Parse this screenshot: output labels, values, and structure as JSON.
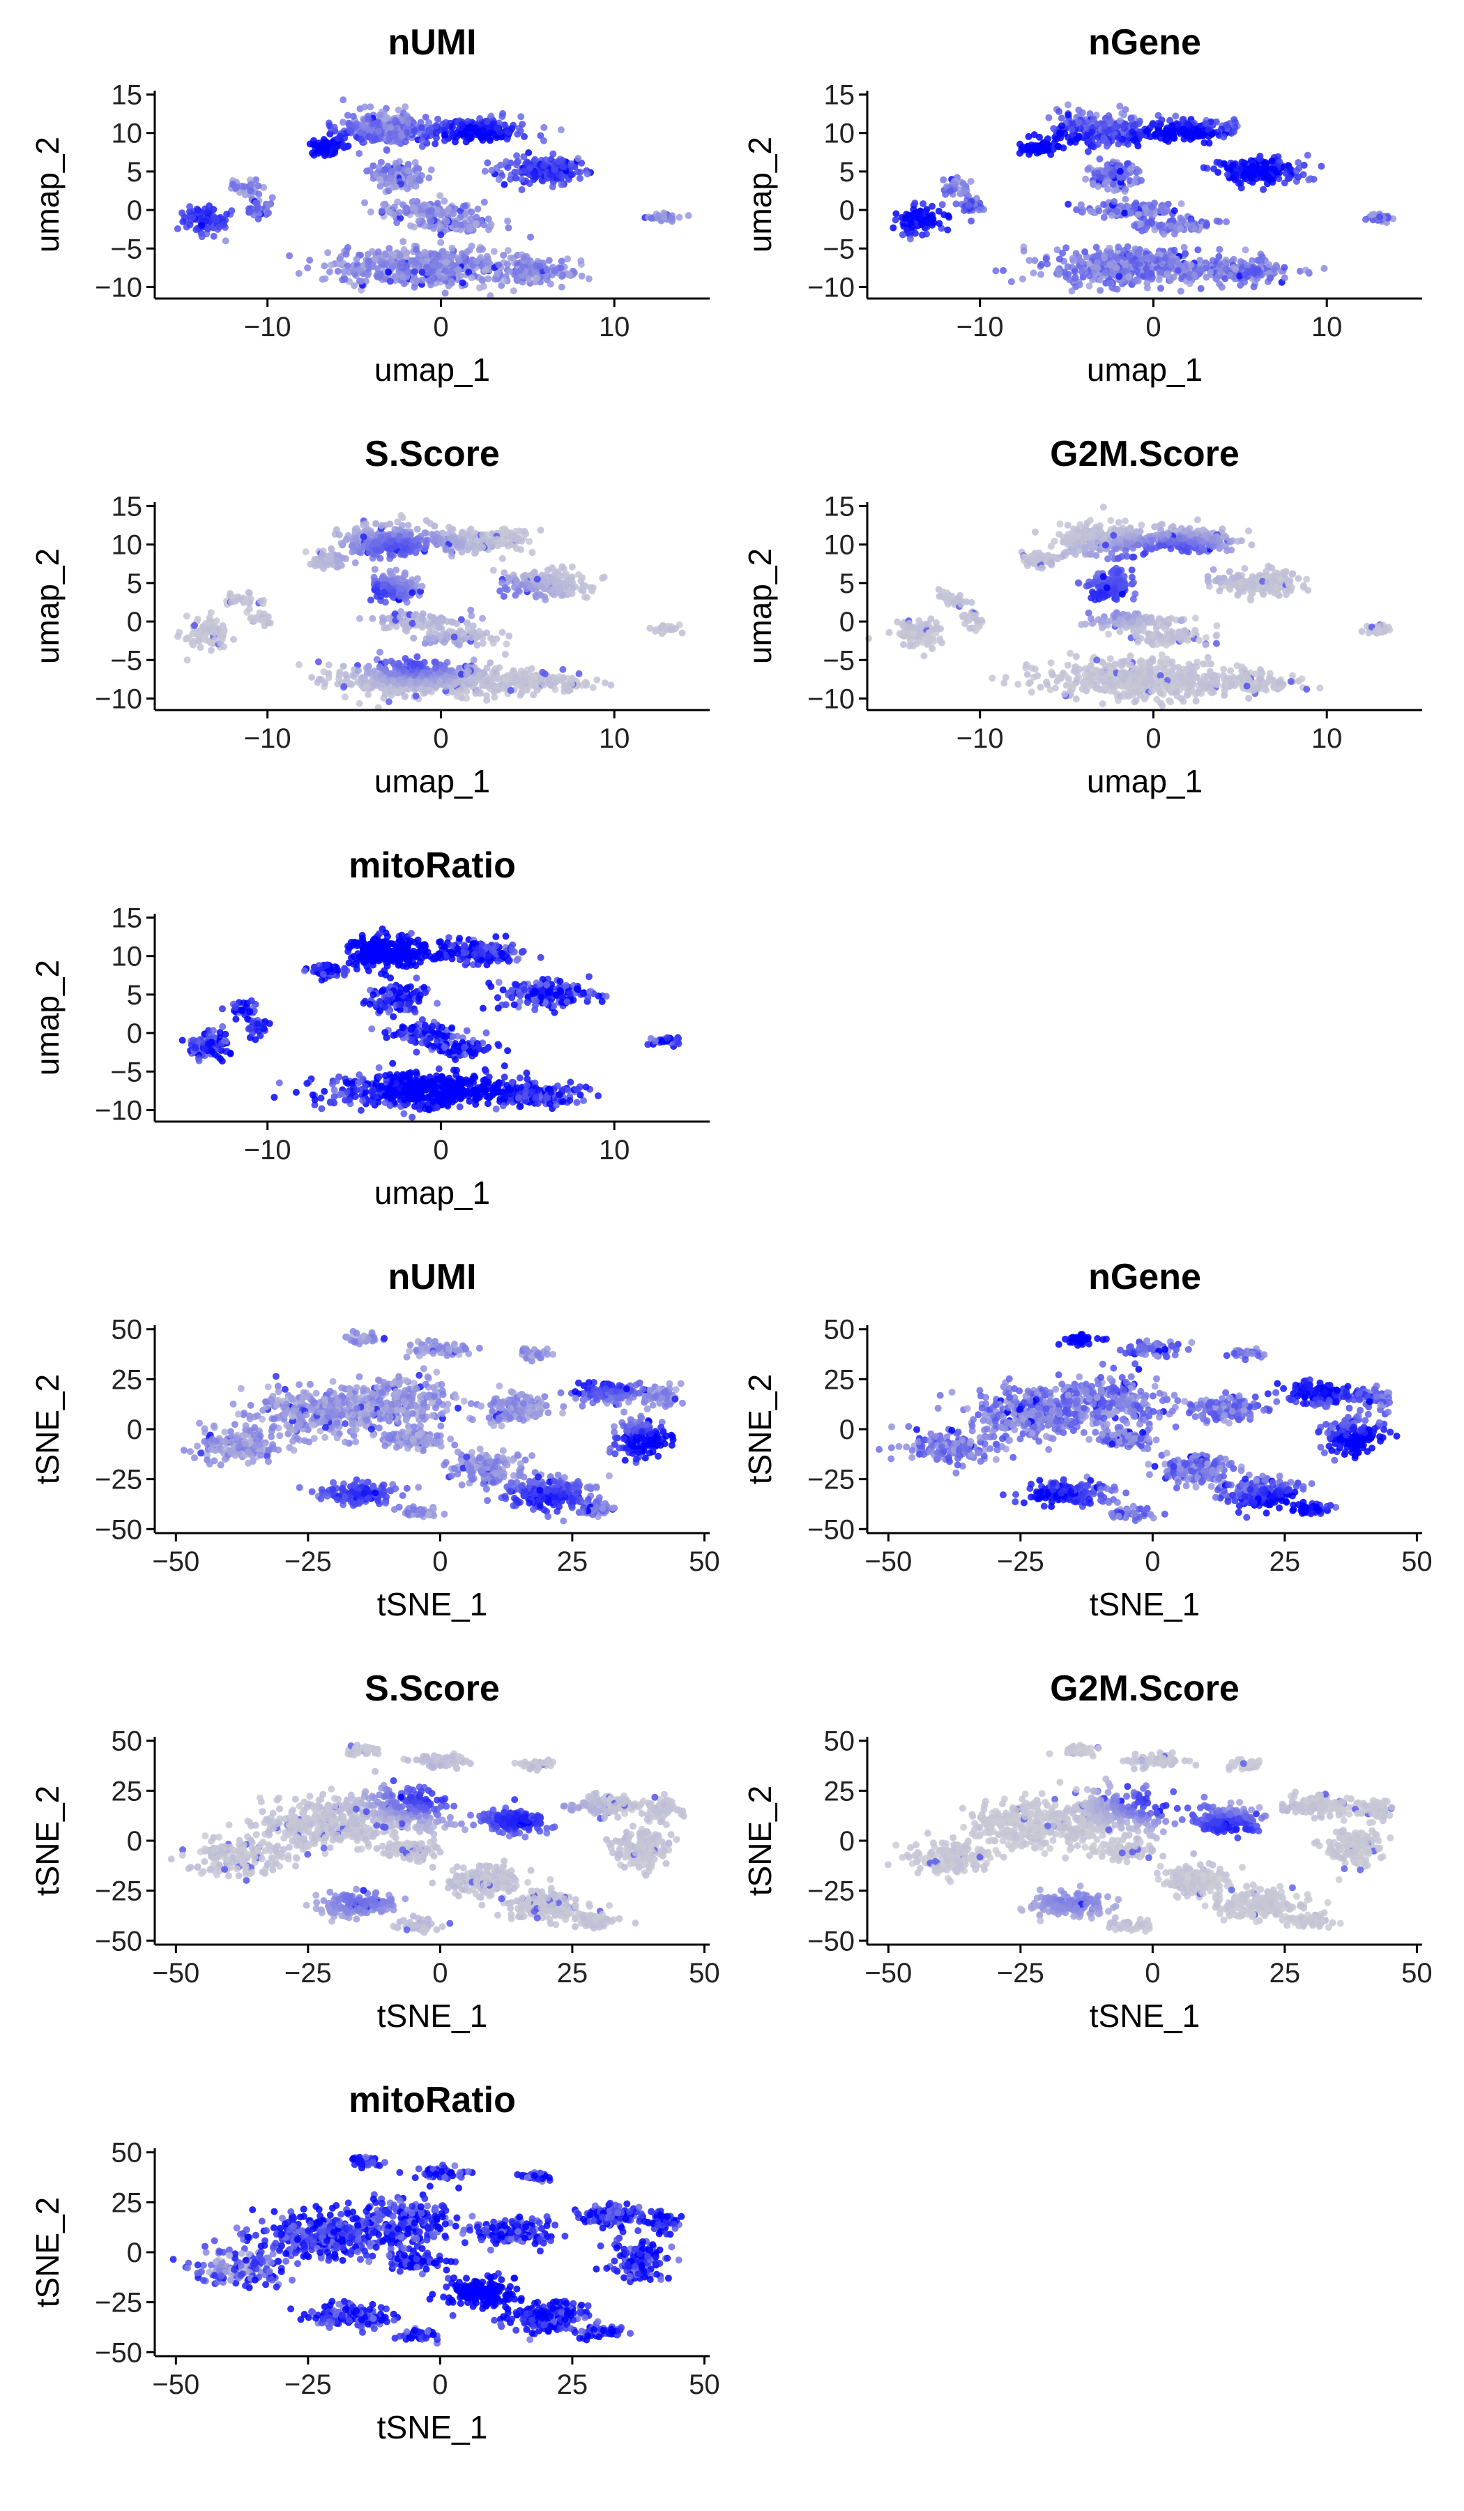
{
  "chart_data": [
    {
      "type": "scatter",
      "embedding": "umap",
      "title": "nUMI",
      "xlabel": "umap_1",
      "ylabel": "umap_2",
      "xlim": [
        -16.5,
        15.5
      ],
      "ylim": [
        -11.5,
        15.5
      ],
      "xticks": [
        -10,
        0,
        10
      ],
      "yticks": [
        -10,
        -5,
        0,
        5,
        10,
        15
      ],
      "color_low": "#d3d3d3",
      "color_high": "#0000ff",
      "intensity": 0.35,
      "hot": [
        [
          -7.5,
          8.5,
          0.9
        ],
        [
          2.0,
          9.5,
          0.85
        ],
        [
          -13.5,
          -1.0,
          0.5
        ],
        [
          6.0,
          5.0,
          0.5
        ]
      ]
    },
    {
      "type": "scatter",
      "embedding": "umap",
      "title": "nGene",
      "xlabel": "umap_1",
      "ylabel": "umap_2",
      "xlim": [
        -16.5,
        15.5
      ],
      "ylim": [
        -11.5,
        15.5
      ],
      "xticks": [
        -10,
        0,
        10
      ],
      "yticks": [
        -10,
        -5,
        0,
        5,
        10,
        15
      ],
      "color_low": "#d3d3d3",
      "color_high": "#0000ff",
      "intensity": 0.45,
      "hot": [
        [
          -6.5,
          8.5,
          0.95
        ],
        [
          1.5,
          9.0,
          0.95
        ],
        [
          -13.5,
          -1.0,
          0.7
        ],
        [
          6.0,
          5.0,
          0.65
        ]
      ]
    },
    {
      "type": "scatter",
      "embedding": "umap",
      "title": "S.Score",
      "xlabel": "umap_1",
      "ylabel": "umap_2",
      "xlim": [
        -16.5,
        15.5
      ],
      "ylim": [
        -11.5,
        15.5
      ],
      "xticks": [
        -10,
        0,
        10
      ],
      "yticks": [
        -10,
        -5,
        0,
        5,
        10,
        15
      ],
      "color_low": "#d3d3d3",
      "color_high": "#0000ff",
      "intensity": 0.08,
      "hot": [
        [
          -4.5,
          3.5,
          0.75
        ],
        [
          -2.5,
          9.5,
          0.55
        ],
        [
          -1.5,
          -5.0,
          0.6
        ],
        [
          3.0,
          3.0,
          0.5
        ]
      ]
    },
    {
      "type": "scatter",
      "embedding": "umap",
      "title": "G2M.Score",
      "xlabel": "umap_1",
      "ylabel": "umap_2",
      "xlim": [
        -16.5,
        15.5
      ],
      "ylim": [
        -11.5,
        15.5
      ],
      "xticks": [
        -10,
        0,
        10
      ],
      "yticks": [
        -10,
        -5,
        0,
        5,
        10,
        15
      ],
      "color_low": "#d3d3d3",
      "color_high": "#0000ff",
      "intensity": 0.08,
      "hot": [
        [
          -3.5,
          3.0,
          0.75
        ],
        [
          -1.0,
          7.0,
          0.55
        ],
        [
          1.5,
          9.0,
          0.5
        ]
      ]
    },
    {
      "type": "scatter",
      "embedding": "umap",
      "title": "mitoRatio",
      "xlabel": "umap_1",
      "ylabel": "umap_2",
      "xlim": [
        -16.5,
        15.5
      ],
      "ylim": [
        -11.5,
        15.5
      ],
      "xticks": [
        -10,
        0,
        10
      ],
      "yticks": [
        -10,
        -5,
        0,
        5,
        10,
        15
      ],
      "color_low": "#d3d3d3",
      "color_high": "#0000ff",
      "intensity": 0.85,
      "hot": [
        [
          0.0,
          -7.0,
          0.95
        ],
        [
          -3.0,
          10.0,
          0.9
        ]
      ]
    },
    {
      "type": "scatter",
      "embedding": "tsne",
      "title": "nUMI",
      "xlabel": "tSNE_1",
      "ylabel": "tSNE_2",
      "xlim": [
        -54,
        51
      ],
      "ylim": [
        -52,
        52
      ],
      "xticks": [
        -50,
        -25,
        0,
        25,
        50
      ],
      "yticks": [
        -50,
        -25,
        0,
        25,
        50
      ],
      "color_low": "#d3d3d3",
      "color_high": "#0000ff",
      "intensity": 0.3,
      "hot": [
        [
          42,
          -8,
          0.95
        ],
        [
          28,
          25,
          0.6
        ],
        [
          -15,
          -32,
          0.5
        ],
        [
          20,
          -35,
          0.6
        ]
      ]
    },
    {
      "type": "scatter",
      "embedding": "tsne",
      "title": "nGene",
      "xlabel": "tSNE_1",
      "ylabel": "tSNE_2",
      "xlim": [
        -54,
        51
      ],
      "ylim": [
        -52,
        52
      ],
      "xticks": [
        -50,
        -25,
        0,
        25,
        50
      ],
      "yticks": [
        -50,
        -25,
        0,
        25,
        50
      ],
      "color_low": "#d3d3d3",
      "color_high": "#0000ff",
      "intensity": 0.45,
      "hot": [
        [
          42,
          -8,
          0.95
        ],
        [
          25,
          -40,
          0.85
        ],
        [
          -20,
          -35,
          0.6
        ],
        [
          30,
          20,
          0.6
        ],
        [
          -14,
          45,
          0.8
        ]
      ]
    },
    {
      "type": "scatter",
      "embedding": "tsne",
      "title": "S.Score",
      "xlabel": "tSNE_1",
      "ylabel": "tSNE_2",
      "xlim": [
        -54,
        51
      ],
      "ylim": [
        -52,
        52
      ],
      "xticks": [
        -50,
        -25,
        0,
        25,
        50
      ],
      "yticks": [
        -50,
        -25,
        0,
        25,
        50
      ],
      "color_low": "#d3d3d3",
      "color_high": "#0000ff",
      "intensity": 0.08,
      "hot": [
        [
          15,
          10,
          0.8
        ],
        [
          -2,
          22,
          0.7
        ],
        [
          -15,
          -30,
          0.4
        ]
      ]
    },
    {
      "type": "scatter",
      "embedding": "tsne",
      "title": "G2M.Score",
      "xlabel": "tSNE_1",
      "ylabel": "tSNE_2",
      "xlim": [
        -54,
        51
      ],
      "ylim": [
        -52,
        52
      ],
      "xticks": [
        -50,
        -25,
        0,
        25,
        50
      ],
      "yticks": [
        -50,
        -25,
        0,
        25,
        50
      ],
      "color_low": "#d3d3d3",
      "color_high": "#0000ff",
      "intensity": 0.06,
      "hot": [
        [
          15,
          5,
          0.8
        ],
        [
          2,
          20,
          0.8
        ],
        [
          -15,
          -30,
          0.35
        ]
      ]
    },
    {
      "type": "scatter",
      "embedding": "tsne",
      "title": "mitoRatio",
      "xlabel": "tSNE_1",
      "ylabel": "tSNE_2",
      "xlim": [
        -54,
        51
      ],
      "ylim": [
        -52,
        52
      ],
      "xticks": [
        -50,
        -25,
        0,
        25,
        50
      ],
      "yticks": [
        -50,
        -25,
        0,
        25,
        50
      ],
      "color_low": "#d3d3d3",
      "color_high": "#0000ff",
      "intensity": 0.85,
      "hot": [
        [
          10,
          -20,
          0.95
        ],
        [
          -40,
          -5,
          -0.45
        ]
      ]
    }
  ]
}
